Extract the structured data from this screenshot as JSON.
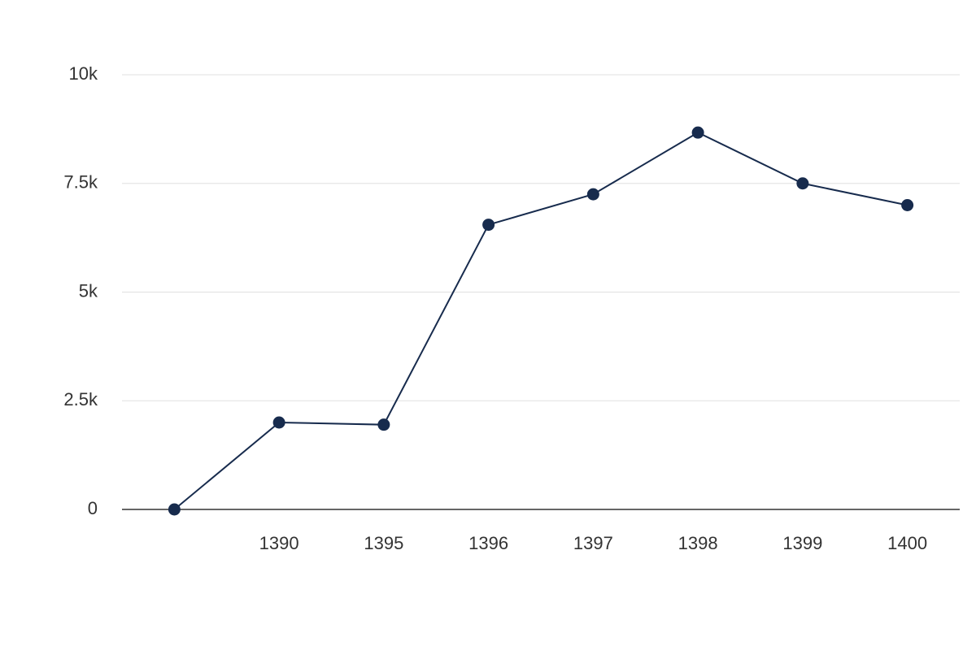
{
  "chart_data": {
    "type": "line",
    "categories": [
      null,
      "1390",
      "1395",
      "1396",
      "1397",
      "1398",
      "1399",
      "1400"
    ],
    "series": [
      {
        "color": "#172b4d",
        "values": [
          0,
          2000,
          1950,
          6550,
          7250,
          8670,
          7500,
          7000
        ]
      }
    ],
    "ylim": [
      0,
      10000
    ],
    "yticks": [
      0,
      {
        "value": 2500,
        "label": "2.5k"
      },
      {
        "value": 5000,
        "label": "5k"
      },
      {
        "value": 7500,
        "label": "7.5k"
      },
      {
        "value": 10000,
        "label": "10k"
      }
    ],
    "grid": true
  }
}
